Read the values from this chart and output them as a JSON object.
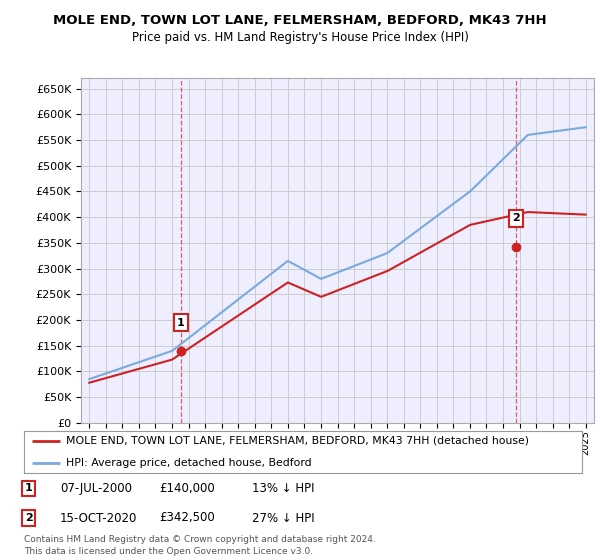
{
  "title": "MOLE END, TOWN LOT LANE, FELMERSHAM, BEDFORD, MK43 7HH",
  "subtitle": "Price paid vs. HM Land Registry's House Price Index (HPI)",
  "ylim": [
    0,
    670000
  ],
  "yticks": [
    0,
    50000,
    100000,
    150000,
    200000,
    250000,
    300000,
    350000,
    400000,
    450000,
    500000,
    550000,
    600000,
    650000
  ],
  "hpi_color": "#7aaadd",
  "price_color": "#cc2222",
  "vline_color": "#cc2222",
  "grid_color": "#cccccc",
  "background_color": "#ffffff",
  "plot_bg_color": "#eeeeff",
  "legend_label_price": "MOLE END, TOWN LOT LANE, FELMERSHAM, BEDFORD, MK43 7HH (detached house)",
  "legend_label_hpi": "HPI: Average price, detached house, Bedford",
  "sale1_year": 2000.542,
  "sale1_price": 140000,
  "sale1_text": "07-JUL-2000",
  "sale1_value": "£140,000",
  "sale1_pct": "13% ↓ HPI",
  "sale2_year": 2020.792,
  "sale2_price": 342500,
  "sale2_text": "15-OCT-2020",
  "sale2_value": "£342,500",
  "sale2_pct": "27% ↓ HPI",
  "footer1": "Contains HM Land Registry data © Crown copyright and database right 2024.",
  "footer2": "This data is licensed under the Open Government Licence v3.0.",
  "start_year": 1995,
  "end_year": 2025
}
